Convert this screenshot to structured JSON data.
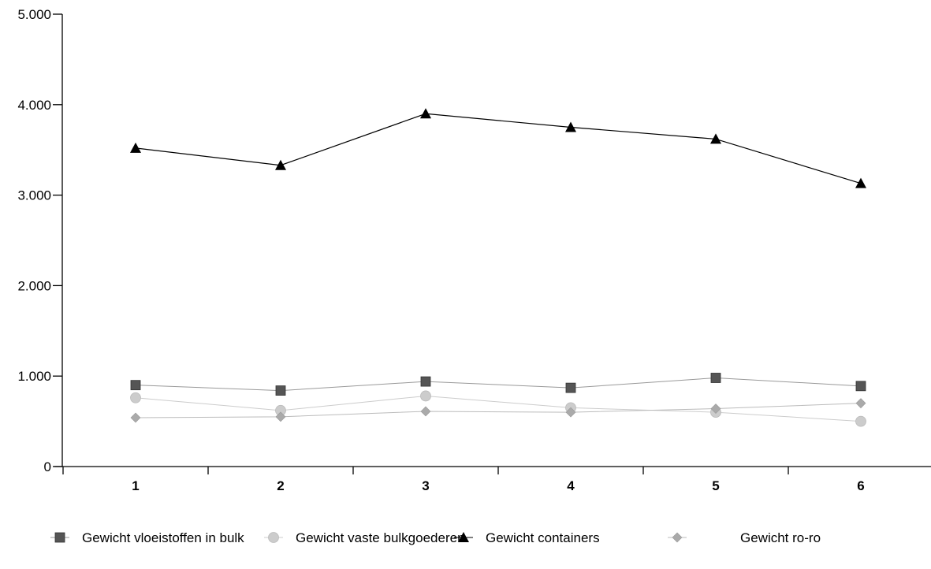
{
  "chart_data": {
    "type": "line",
    "title": "",
    "xlabel": "",
    "ylabel": "",
    "categories": [
      "1",
      "2",
      "3",
      "4",
      "5",
      "6"
    ],
    "ylim": [
      0,
      5000
    ],
    "y_ticks": [
      0,
      1000,
      2000,
      3000,
      4000,
      5000
    ],
    "y_tick_labels": [
      "0",
      "1.000",
      "2.000",
      "3.000",
      "4.000",
      "5.000"
    ],
    "grid": false,
    "legend_position": "bottom",
    "series": [
      {
        "name": "Gewicht vloeistoffen in bulk",
        "values": [
          900,
          840,
          940,
          870,
          980,
          890
        ],
        "marker": "square",
        "color": "#555555",
        "line_color": "#999999"
      },
      {
        "name": "Gewicht vaste bulkgoederen",
        "values": [
          760,
          620,
          780,
          650,
          600,
          500
        ],
        "marker": "circle",
        "color": "#cccccc",
        "line_color": "#cccccc"
      },
      {
        "name": "Gewicht containers",
        "values": [
          3520,
          3330,
          3900,
          3750,
          3620,
          3130
        ],
        "marker": "triangle",
        "color": "#000000",
        "line_color": "#000000"
      },
      {
        "name": "Gewicht ro-ro",
        "values": [
          540,
          550,
          610,
          600,
          640,
          700
        ],
        "marker": "diamond",
        "color": "#aaaaaa",
        "line_color": "#bbbbbb"
      }
    ]
  }
}
